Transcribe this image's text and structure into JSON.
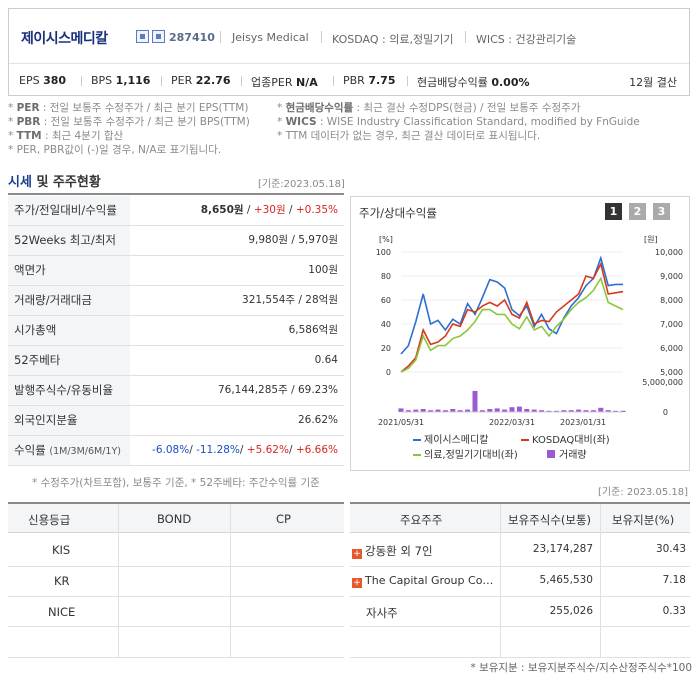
{
  "company": {
    "name": "제이시스메디칼",
    "code": "287410",
    "eng_name": "Jeisys Medical",
    "market": "KOSDAQ : 의료,정밀기기",
    "wics": "WICS : 건강관리기술"
  },
  "indicators": [
    {
      "label": "EPS",
      "value": "380"
    },
    {
      "label": "BPS",
      "value": "1,116"
    },
    {
      "label": "PER",
      "value": "22.76"
    },
    {
      "label": "업종PER",
      "value": "N/A"
    },
    {
      "label": "PBR",
      "value": "7.75"
    },
    {
      "label": "현금배당수익률",
      "value": "0.00%"
    }
  ],
  "settlement": "12월 결산",
  "notes_left": [
    {
      "key": "PER",
      "text": " : 전일 보통주 수정주가 / 최근 분기 EPS(TTM)"
    },
    {
      "key": "PBR",
      "text": " : 전일 보통주 수정주가 / 최근 분기 BPS(TTM)"
    },
    {
      "key": "TTM",
      "text": " : 최근 4분기 합산"
    },
    {
      "key": "",
      "text": "PER, PBR값이 (-)일 경우, N/A로 표기됩니다."
    }
  ],
  "notes_right": [
    {
      "key": "현금배당수익률",
      "text": " : 최근 결산 수정DPS(현금) / 전일 보통주 수정주가"
    },
    {
      "key": "WICS",
      "text": " : WISE Industry Classification Standard, modified by FnGuide"
    },
    {
      "key": "",
      "text": "TTM 데이터가 없는 경우, 최근 결산 데이터로 표시됩니다."
    }
  ],
  "section": {
    "title_a": "시세",
    "title_b": " 및 주주현황",
    "basis": "[기준:2023.05.18]"
  },
  "quote_table": [
    {
      "label": "주가/전일대비/수익률",
      "v1": "8,650원",
      "v2": "+30원",
      "v3": "+0.35%"
    },
    {
      "label": "52Weeks 최고/최저",
      "value": "9,980원 / 5,970원"
    },
    {
      "label": "액면가",
      "value": "100원"
    },
    {
      "label": "거래량/거래대금",
      "value": "321,554주 / 28억원"
    },
    {
      "label": "시가총액",
      "value": "6,586억원"
    },
    {
      "label": "52주베타",
      "value": "0.64"
    },
    {
      "label": "발행주식수/유동비율",
      "value": "76,144,285주 / 69.23%"
    },
    {
      "label": "외국인지분율",
      "value": "26.62%"
    },
    {
      "label": "수익률",
      "sub": "(1M/3M/6M/1Y)",
      "r1": "-6.08%",
      "r2": "-11.28%",
      "r3": "+5.62%",
      "r4": "+6.66%"
    }
  ],
  "quote_note": "* 수정주가(차트포함), 보통주 기준, * 52주베타: 주간수익률 기준",
  "chart_panel": {
    "title": "주가/상대수익률",
    "pages": [
      "1",
      "2",
      "3"
    ],
    "left_unit": "[%]",
    "right_unit": "[원]"
  },
  "chart_data": {
    "type": "line",
    "x_ticks": [
      "2021/05/31",
      "2022/03/31",
      "2023/01/31"
    ],
    "left_axis": {
      "ticks": [
        "100",
        "80",
        "60",
        "40",
        "20",
        "0"
      ],
      "range": [
        0,
        100
      ]
    },
    "right_axis": {
      "ticks": [
        "10,000",
        "9,000",
        "8,000",
        "7,000",
        "6,000",
        "5,000"
      ],
      "range": [
        5000,
        10000
      ]
    },
    "volume_axis": {
      "ticks": [
        "5,000,000",
        "0"
      ],
      "max": 5000000
    },
    "series": [
      {
        "name": "제이시스메디칼",
        "color": "#2f6fcf",
        "values": [
          15,
          22,
          42,
          65,
          40,
          43,
          35,
          44,
          40,
          57,
          48,
          62,
          77,
          75,
          70,
          52,
          47,
          55,
          38,
          48,
          36,
          32,
          45,
          55,
          62,
          72,
          78,
          95,
          72,
          73,
          73
        ]
      },
      {
        "name": "KOSDAQ대비(좌)",
        "color": "#d63a1e",
        "values": [
          0,
          5,
          12,
          35,
          23,
          25,
          30,
          40,
          38,
          52,
          50,
          55,
          58,
          55,
          60,
          48,
          45,
          58,
          40,
          43,
          42,
          50,
          55,
          60,
          65,
          80,
          78,
          90,
          65,
          66,
          67
        ]
      },
      {
        "name": "의료,정밀기기대비(좌)",
        "color": "#8cc63f",
        "values": [
          0,
          3,
          10,
          30,
          18,
          22,
          22,
          28,
          30,
          35,
          42,
          52,
          52,
          48,
          48,
          40,
          36,
          46,
          35,
          38,
          30,
          38,
          44,
          52,
          58,
          62,
          68,
          78,
          58,
          55,
          52
        ]
      }
    ],
    "volume": {
      "name": "거래량",
      "color": "#9b59d6",
      "values": [
        600000,
        300000,
        400000,
        500000,
        300000,
        400000,
        300000,
        500000,
        300000,
        400000,
        3500000,
        300000,
        500000,
        600000,
        400000,
        800000,
        900000,
        500000,
        400000,
        300000,
        200000,
        200000,
        300000,
        300000,
        400000,
        300000,
        300000,
        700000,
        300000,
        200000,
        200000
      ]
    }
  },
  "bottom_basis": "[기준: 2023.05.18]",
  "credit": {
    "headers": [
      "신용등급",
      "BOND",
      "CP"
    ],
    "rows": [
      "KIS",
      "KR",
      "NICE"
    ]
  },
  "holders": {
    "headers": [
      "주요주주",
      "보유주식수(보통)",
      "보유지분(%)"
    ],
    "rows": [
      {
        "name": "강동환 외 7인",
        "shares": "23,174,287",
        "pct": "30.43",
        "expand": true
      },
      {
        "name": "The Capital Group Co…",
        "shares": "5,465,530",
        "pct": "7.18",
        "expand": true
      },
      {
        "name": "자사주",
        "shares": "255,026",
        "pct": "0.33",
        "expand": false
      }
    ],
    "note": "* 보유지분 : 보유지분주식수/지수산정주식수*100"
  }
}
